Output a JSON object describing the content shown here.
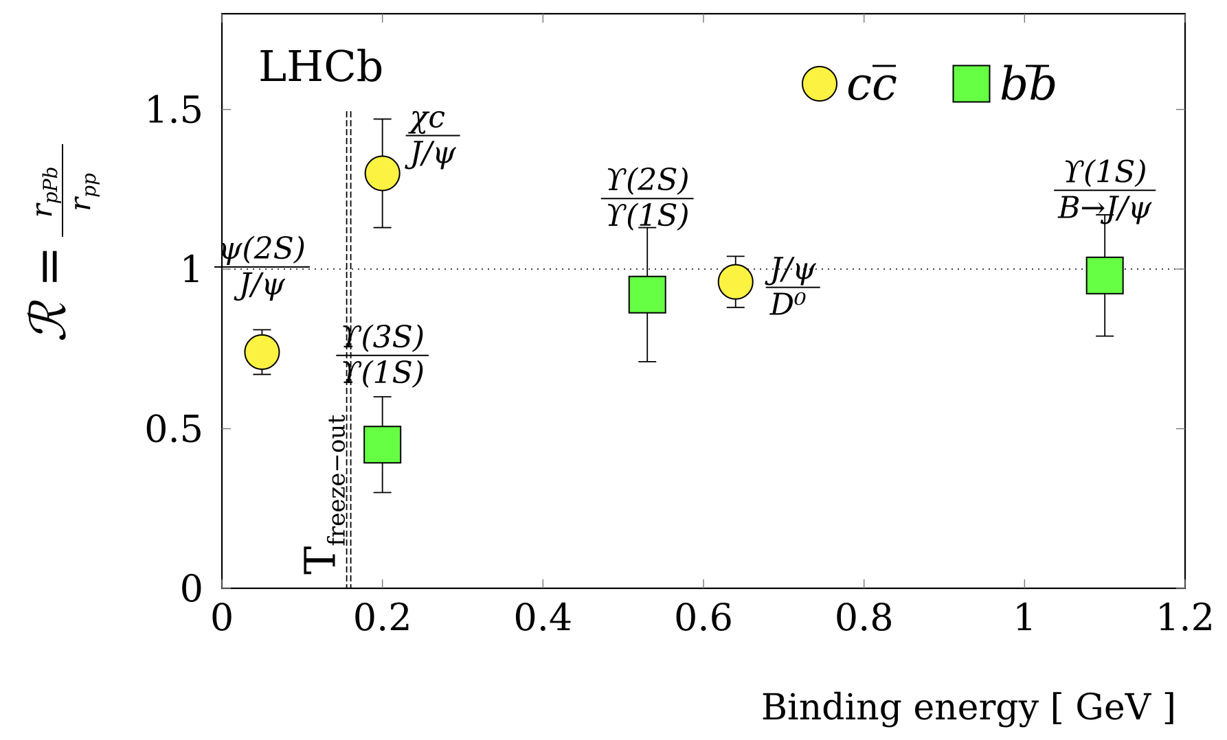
{
  "colors": {
    "circle_fill": "#fcf242",
    "square_fill": "#66ff44",
    "axis": "#000000"
  },
  "chart_data": {
    "type": "scatter",
    "title": "",
    "watermark": "LHCb",
    "xlabel": "Binding energy [ GeV ]",
    "ylabel": "ℛ =",
    "ylabel_frac": {
      "num": "r_pPb",
      "num_main": "r",
      "num_sub": "pPb",
      "den": "r_pp",
      "den_main": "r",
      "den_sub": "pp"
    },
    "xlim": [
      0,
      1.2
    ],
    "ylim": [
      0,
      1.8
    ],
    "xticks": [
      0,
      0.2,
      0.4,
      0.6,
      0.8,
      1,
      1.2
    ],
    "xtick_labels": [
      "0",
      "0.2",
      "0.4",
      "0.6",
      "0.8",
      "1",
      "1.2"
    ],
    "yticks": [
      0,
      0.5,
      1,
      1.5
    ],
    "ytick_labels": [
      "0",
      "0.5",
      "1",
      "1.5"
    ],
    "reference_line_y": 1,
    "freeze_out": {
      "x": 0.158,
      "label_main": "T",
      "label_sub": "freeze−out"
    },
    "legend": [
      {
        "name": "c̅c",
        "main": "c",
        "bar": "c",
        "marker": "circle"
      },
      {
        "name": "b̅b",
        "main": "b",
        "bar": "b",
        "marker": "square"
      }
    ],
    "series": [
      {
        "name": "cc",
        "marker": "circle",
        "points": [
          {
            "x": 0.05,
            "y": 0.74,
            "yerr_low": 0.67,
            "yerr_high": 0.81,
            "label_num": "ψ(2S)",
            "label_den": "J/ψ"
          },
          {
            "x": 0.2,
            "y": 1.3,
            "yerr_low": 1.13,
            "yerr_high": 1.47,
            "label_num": "χc",
            "label_den": "J/ψ"
          },
          {
            "x": 0.64,
            "y": 0.96,
            "yerr_low": 0.88,
            "yerr_high": 1.04,
            "label_num": "J/ψ",
            "label_den": "D⁰"
          }
        ]
      },
      {
        "name": "bb",
        "marker": "square",
        "points": [
          {
            "x": 0.2,
            "y": 0.45,
            "yerr_low": 0.3,
            "yerr_high": 0.6,
            "label_num": "ϒ(3S)",
            "label_den": "ϒ(1S)"
          },
          {
            "x": 0.53,
            "y": 0.92,
            "yerr_low": 0.71,
            "yerr_high": 1.13,
            "label_num": "ϒ(2S)",
            "label_den": "ϒ(1S)"
          },
          {
            "x": 1.1,
            "y": 0.98,
            "yerr_low": 0.79,
            "yerr_high": 1.17,
            "label_num": "ϒ(1S)",
            "label_den": "B→J/ψ"
          }
        ]
      }
    ]
  }
}
